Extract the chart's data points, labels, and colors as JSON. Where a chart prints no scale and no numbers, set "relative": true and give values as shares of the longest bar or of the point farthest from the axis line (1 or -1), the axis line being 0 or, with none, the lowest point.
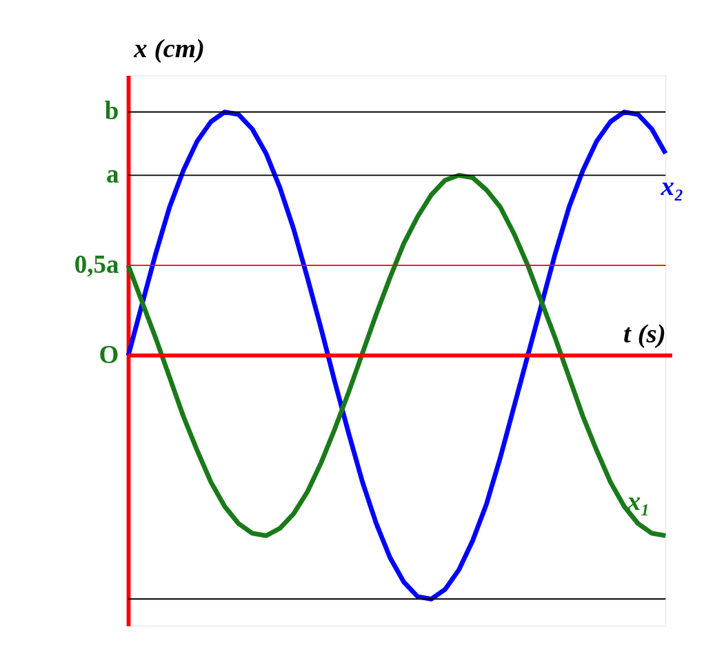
{
  "chart_data": {
    "type": "line",
    "xlabel": "t (s)",
    "ylabel": "x (cm)",
    "relative": true,
    "categories": [
      null,
      null,
      null,
      null,
      null,
      null,
      null,
      null,
      null,
      null,
      null,
      null,
      null,
      null,
      null,
      null,
      null,
      null,
      null,
      null,
      null,
      null,
      null,
      null,
      null,
      null,
      null,
      null,
      null,
      null,
      null,
      null,
      null,
      null,
      null,
      null,
      null,
      null,
      null,
      null
    ],
    "series": [
      {
        "name": "x₂",
        "color": "#0000ff",
        "values": [
          0,
          0.21,
          0.42,
          0.61,
          0.76,
          0.88,
          0.96,
          1,
          0.99,
          0.93,
          0.83,
          0.69,
          0.52,
          0.32,
          0.11,
          -0.11,
          -0.32,
          -0.52,
          -0.69,
          -0.83,
          -0.93,
          -0.99,
          -1,
          -0.96,
          -0.88,
          -0.76,
          -0.61,
          -0.42,
          -0.21,
          0,
          0.21,
          0.42,
          0.61,
          0.76,
          0.88,
          0.96,
          1,
          0.99,
          0.93,
          0.83
        ]
      },
      {
        "name": "x₁",
        "color": "#1a7a1a",
        "values": [
          0.37,
          0.22,
          0.07,
          -0.09,
          -0.25,
          -0.39,
          -0.52,
          -0.62,
          -0.69,
          -0.73,
          -0.74,
          -0.71,
          -0.65,
          -0.56,
          -0.44,
          -0.3,
          -0.15,
          0.01,
          0.17,
          0.32,
          0.46,
          0.57,
          0.66,
          0.72,
          0.74,
          0.73,
          0.68,
          0.61,
          0.5,
          0.37,
          0.22,
          0.07,
          -0.09,
          -0.25,
          -0.39,
          -0.52,
          -0.62,
          -0.69,
          -0.73,
          -0.74
        ]
      }
    ],
    "ref_lines": [
      {
        "axis": "y",
        "value": 1,
        "label": "b",
        "color": "#000000"
      },
      {
        "axis": "y",
        "value": 0.74,
        "label": "a",
        "color": "#000000"
      },
      {
        "axis": "y",
        "value": 0.37,
        "label": "0,5a",
        "color": "#ff0000"
      },
      {
        "axis": "y",
        "value": 0,
        "label": "O",
        "color": "#ff0000"
      },
      {
        "axis": "y",
        "value": -1,
        "label": null,
        "color": "#000000"
      }
    ],
    "tick_labels": false,
    "grid": false,
    "legend": false,
    "line_style": "solid",
    "marker": "none"
  }
}
